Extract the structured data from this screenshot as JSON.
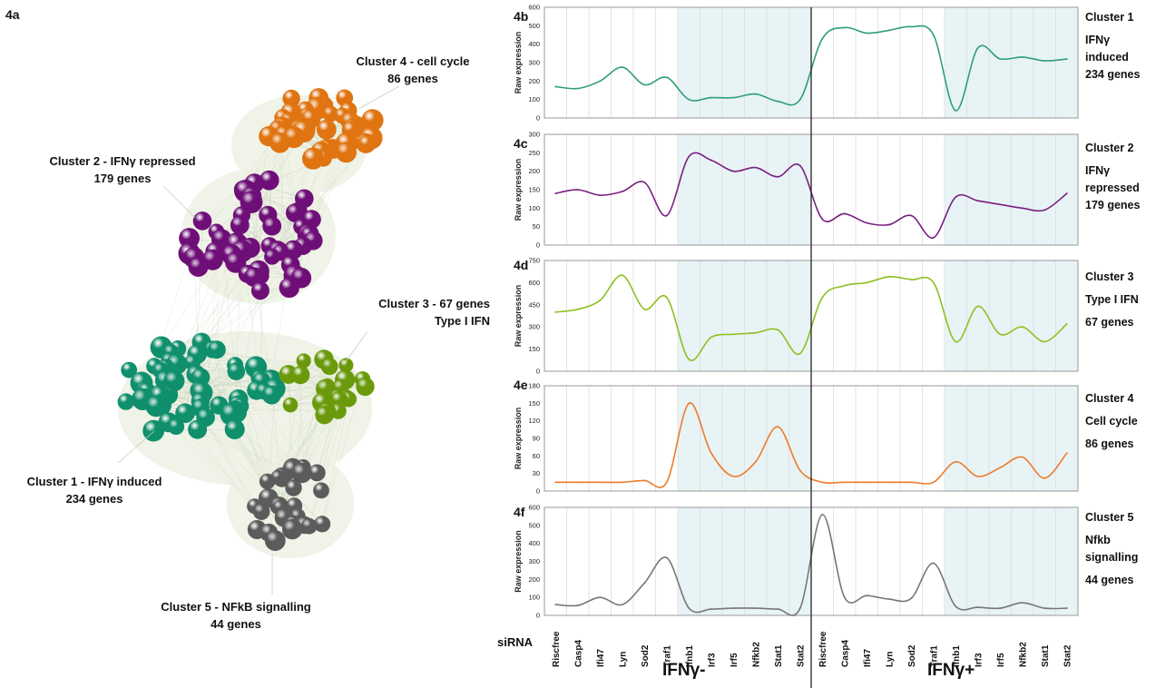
{
  "figure": {
    "panel_a_label": "4a",
    "network_labels": [
      {
        "id": "c4",
        "line1": "Cluster 4 - cell cycle",
        "line2": "86 genes"
      },
      {
        "id": "c2",
        "line1": "Cluster 2 - IFNγ repressed",
        "line2": "179 genes"
      },
      {
        "id": "c3",
        "line1": "Cluster 3 - 67 genes",
        "line2": "Type I IFN"
      },
      {
        "id": "c1",
        "line1": "Cluster 1 - IFNγ induced",
        "line2": "234 genes"
      },
      {
        "id": "c5",
        "line1": "Cluster 5 - NFkB signalling",
        "line2": "44 genes"
      }
    ],
    "network_colors": {
      "c1": "#0f8f6c",
      "c2": "#6e0f78",
      "c3": "#6a9a0c",
      "c4": "#e07410",
      "c5": "#5b5b5b",
      "edges": "#cfd9c4",
      "shade": "#eef2e4"
    },
    "xaxis_title": "siRNA",
    "condition_labels": [
      "IFNγ-",
      "IFNγ+"
    ],
    "shaded_color": "#e8f3f6"
  },
  "chart_data": [
    {
      "type": "line",
      "panel": "4b",
      "ylabel": "Raw expression",
      "ylim": [
        0,
        600
      ],
      "yticks": [
        0,
        100,
        200,
        300,
        400,
        500,
        600
      ],
      "color": "#2e9e78",
      "right_label": [
        "Cluster 1",
        "IFNγ",
        "induced",
        "234 genes"
      ],
      "x": [
        "Riscfree",
        "Casp4",
        "Ifi47",
        "Lyn",
        "Sod2",
        "Traf1",
        "Ifnb1",
        "Irf3",
        "Irf5",
        "Nfkb2",
        "Stat1",
        "Stat2",
        "Riscfree",
        "Casp4",
        "Ifi47",
        "Lyn",
        "Sod2",
        "Traf1",
        "Ifnb1",
        "Irf3",
        "Irf5",
        "Nfkb2",
        "Stat1",
        "Stat2"
      ],
      "values": [
        170,
        160,
        200,
        275,
        180,
        220,
        100,
        110,
        110,
        130,
        90,
        100,
        430,
        490,
        460,
        475,
        495,
        450,
        40,
        380,
        320,
        330,
        310,
        320
      ]
    },
    {
      "type": "line",
      "panel": "4c",
      "ylabel": "Raw expression",
      "ylim": [
        0,
        300
      ],
      "yticks": [
        0,
        50,
        100,
        150,
        200,
        250,
        300
      ],
      "color": "#7a1f82",
      "right_label": [
        "Cluster 2",
        "IFNγ",
        "repressed",
        "179 genes"
      ],
      "x": [
        "Riscfree",
        "Casp4",
        "Ifi47",
        "Lyn",
        "Sod2",
        "Traf1",
        "Ifnb1",
        "Irf3",
        "Irf5",
        "Nfkb2",
        "Stat1",
        "Stat2",
        "Riscfree",
        "Casp4",
        "Ifi47",
        "Lyn",
        "Sod2",
        "Traf1",
        "Ifnb1",
        "Irf3",
        "Irf5",
        "Nfkb2",
        "Stat1",
        "Stat2"
      ],
      "values": [
        140,
        150,
        135,
        145,
        170,
        80,
        240,
        230,
        200,
        210,
        185,
        215,
        70,
        85,
        60,
        55,
        80,
        20,
        130,
        120,
        110,
        100,
        95,
        140
      ]
    },
    {
      "type": "line",
      "panel": "4d",
      "ylabel": "Raw expression",
      "ylim": [
        0,
        750
      ],
      "yticks": [
        0,
        150,
        300,
        450,
        600,
        750
      ],
      "color": "#8cc21f",
      "right_label": [
        "Cluster 3",
        "Type I IFN",
        "67 genes"
      ],
      "x": [
        "Riscfree",
        "Casp4",
        "Ifi47",
        "Lyn",
        "Sod2",
        "Traf1",
        "Ifnb1",
        "Irf3",
        "Irf5",
        "Nfkb2",
        "Stat1",
        "Stat2",
        "Riscfree",
        "Casp4",
        "Ifi47",
        "Lyn",
        "Sod2",
        "Traf1",
        "Ifnb1",
        "Irf3",
        "Irf5",
        "Nfkb2",
        "Stat1",
        "Stat2"
      ],
      "values": [
        400,
        420,
        480,
        650,
        420,
        500,
        80,
        230,
        250,
        260,
        280,
        120,
        500,
        580,
        600,
        640,
        620,
        600,
        200,
        440,
        250,
        300,
        200,
        320
      ]
    },
    {
      "type": "line",
      "panel": "4e",
      "ylabel": "Raw expression",
      "ylim": [
        0,
        180
      ],
      "yticks": [
        0,
        30,
        60,
        90,
        120,
        150,
        180
      ],
      "color": "#ef7c2a",
      "right_label": [
        "Cluster 4",
        "Cell cycle",
        "86 genes"
      ],
      "x": [
        "Riscfree",
        "Casp4",
        "Ifi47",
        "Lyn",
        "Sod2",
        "Traf1",
        "Ifnb1",
        "Irf3",
        "Irf5",
        "Nfkb2",
        "Stat1",
        "Stat2",
        "Riscfree",
        "Casp4",
        "Ifi47",
        "Lyn",
        "Sod2",
        "Traf1",
        "Ifnb1",
        "Irf3",
        "Irf5",
        "Nfkb2",
        "Stat1",
        "Stat2"
      ],
      "values": [
        15,
        15,
        15,
        15,
        18,
        15,
        150,
        65,
        25,
        50,
        110,
        35,
        15,
        15,
        15,
        15,
        15,
        15,
        50,
        25,
        40,
        58,
        22,
        65
      ]
    },
    {
      "type": "line",
      "panel": "4f",
      "ylabel": "Raw expression",
      "ylim": [
        0,
        600
      ],
      "yticks": [
        0,
        100,
        200,
        300,
        400,
        500,
        600
      ],
      "color": "#777777",
      "right_label": [
        "Cluster 5",
        "Nfkb",
        "signalling",
        "44 genes"
      ],
      "x": [
        "Riscfree",
        "Casp4",
        "Ifi47",
        "Lyn",
        "Sod2",
        "Traf1",
        "Ifnb1",
        "Irf3",
        "Irf5",
        "Nfkb2",
        "Stat1",
        "Stat2",
        "Riscfree",
        "Casp4",
        "Ifi47",
        "Lyn",
        "Sod2",
        "Traf1",
        "Ifnb1",
        "Irf3",
        "Irf5",
        "Nfkb2",
        "Stat1",
        "Stat2"
      ],
      "values": [
        60,
        55,
        100,
        60,
        180,
        320,
        40,
        35,
        40,
        40,
        35,
        40,
        560,
        100,
        110,
        90,
        95,
        290,
        50,
        45,
        40,
        70,
        40,
        40
      ]
    }
  ]
}
